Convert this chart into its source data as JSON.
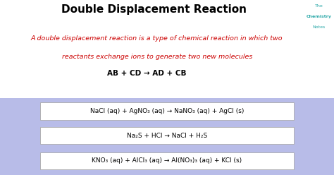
{
  "title": "Double Displacement Reaction",
  "title_fontsize": 11,
  "title_color": "#000000",
  "bg_color": "#ffffff",
  "panel_color": "#b8bce8",
  "watermark_line1": "The",
  "watermark_line2": "Chemistry",
  "watermark_line3": "Notes",
  "watermark_color": "#2aa8a8",
  "definition_line1": "A double displacement reaction is a type of chemical reaction in which two",
  "definition_line2": "reactants exchange ions to generate two new molecules",
  "definition_color": "#cc0000",
  "definition_fontsize": 6.8,
  "formula_general": "AB + CD → AD + CB",
  "formula_fontsize": 7.5,
  "eq1": "NaCl (aq) + AgNO₃ (aq) → NaNO₃ (aq) + AgCl (s)",
  "eq2": "Na₂S + HCl → NaCl + H₂S",
  "eq3": "KNO₃ (aq) + AlCl₃ (aq) → Al(NO₃)₃ (aq) + KCl (s)",
  "eq_fontsize": 6.5,
  "eq_box_color": "#ffffff",
  "eq_box_edgecolor": "#aaaaaa"
}
